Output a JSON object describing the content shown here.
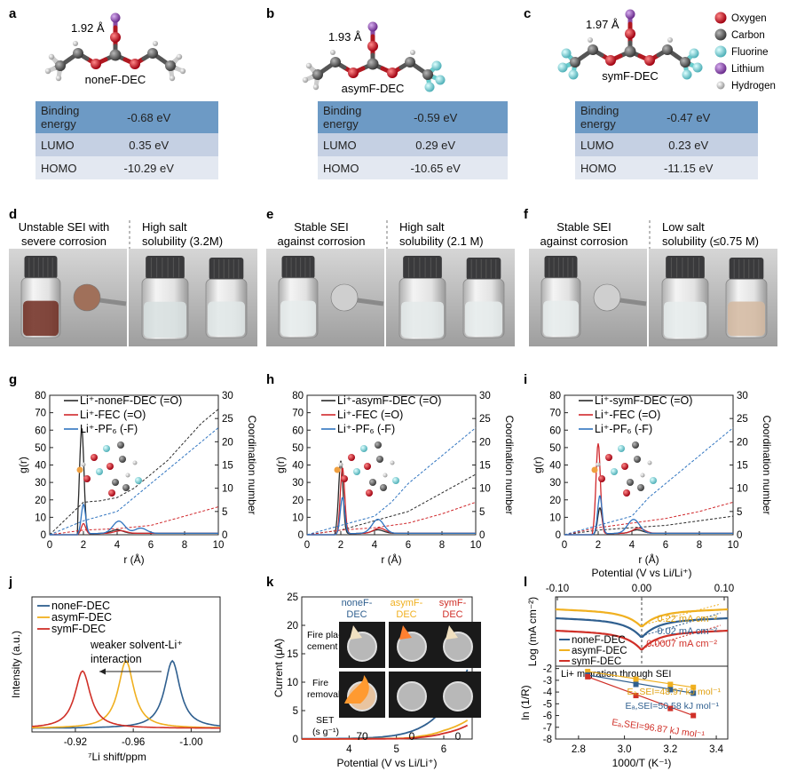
{
  "panel_labels": {
    "a": "a",
    "b": "b",
    "c": "c",
    "d": "d",
    "e": "e",
    "f": "f",
    "g": "g",
    "h": "h",
    "i": "i",
    "j": "j",
    "k": "k",
    "l": "l"
  },
  "molecules": [
    {
      "name": "noneF-DEC",
      "distance": "1.92 Å",
      "rows": [
        {
          "label1": "Binding",
          "label2": "energy",
          "value": "-0.68 eV"
        },
        {
          "label1": "LUMO",
          "label2": "",
          "value": "0.35 eV"
        },
        {
          "label1": "HOMO",
          "label2": "",
          "value": "-10.29 eV"
        }
      ]
    },
    {
      "name": "asymF-DEC",
      "distance": "1.93 Å",
      "rows": [
        {
          "label1": "Binding",
          "label2": "energy",
          "value": "-0.59 eV"
        },
        {
          "label1": "LUMO",
          "label2": "",
          "value": "0.29 eV"
        },
        {
          "label1": "HOMO",
          "label2": "",
          "value": "-10.65 eV"
        }
      ]
    },
    {
      "name": "symF-DEC",
      "distance": "1.97 Å",
      "rows": [
        {
          "label1": "Binding",
          "label2": "energy",
          "value": "-0.47 eV"
        },
        {
          "label1": "LUMO",
          "label2": "",
          "value": "0.23 eV"
        },
        {
          "label1": "HOMO",
          "label2": "",
          "value": "-11.15 eV"
        }
      ]
    }
  ],
  "atom_legend": [
    {
      "name": "Oxygen",
      "color": "#c8141c"
    },
    {
      "name": "Carbon",
      "color": "#5a5a5a"
    },
    {
      "name": "Fluorine",
      "color": "#7fd4d8"
    },
    {
      "name": "Lithium",
      "color": "#9a5cb4"
    },
    {
      "name": "Hydrogen",
      "color": "#d8d8d8"
    }
  ],
  "photos": [
    {
      "left1": "Unstable SEI with",
      "left2": "severe corrosion",
      "right1": "High salt",
      "right2": "solubility (3.2M)"
    },
    {
      "left1": "Stable SEI",
      "left2": "against corrosion",
      "right1": "High salt",
      "right2": "solubility (2.1 M)"
    },
    {
      "left1": "Stable SEI",
      "left2": "against corrosion",
      "right1": "Low salt",
      "right2": "solubility (≤0.75 M)"
    }
  ],
  "rdf": {
    "xlabel": "r (Å)",
    "ylabel": "g(r)",
    "y2label": "Coordination number",
    "xticks": [
      "0",
      "2",
      "4",
      "6",
      "8",
      "10"
    ],
    "yticks": [
      "0",
      "10",
      "20",
      "30",
      "40",
      "50",
      "60",
      "70",
      "80"
    ],
    "y2ticks": [
      "0",
      "5",
      "10",
      "15",
      "20",
      "25",
      "30"
    ],
    "panels": [
      {
        "legend": [
          "Li⁺-noneF-DEC (=O)",
          "Li⁺-FEC (=O)",
          "Li⁺-PF₆ (-F)"
        ],
        "peaks": [
          61,
          6,
          17
        ]
      },
      {
        "legend": [
          "Li⁺-asymF-DEC (=O)",
          "Li⁺-FEC (=O)",
          "Li⁺-PF₆ (-F)"
        ],
        "peaks": [
          42,
          38,
          21
        ]
      },
      {
        "legend": [
          "Li⁺-symF-DEC (=O)",
          "Li⁺-FEC (=O)",
          "Li⁺-PF₆ (-F)"
        ],
        "peaks": [
          15,
          52,
          22
        ]
      }
    ]
  },
  "nmr": {
    "legend": [
      "noneF-DEC",
      "asymF-DEC",
      "symF-DEC"
    ],
    "annotation1": "weaker solvent-Li⁺",
    "annotation2": "interaction",
    "xlabel": "⁷Li shift/ppm",
    "ylabel": "Intensity (a.u.)",
    "xticks": [
      "-0.92",
      "-0.96",
      "-1.00"
    ]
  },
  "lsv": {
    "xlabel": "Potential (V vs Li/Li⁺)",
    "ylabel": "Current (μA)",
    "xticks": [
      "4",
      "5",
      "6"
    ],
    "yticks": [
      "0",
      "5",
      "10",
      "15",
      "20",
      "25"
    ],
    "columns": [
      "noneF-",
      "asymF-",
      "symF-"
    ],
    "col2": "DEC",
    "rows": [
      "Fire pla-",
      "cement",
      "Fire",
      "removal"
    ],
    "set_label": "SET",
    "set_unit": "(s g⁻¹)",
    "set_values": [
      "70",
      "0",
      "0"
    ]
  },
  "tafel": {
    "top_xlabel": "Potential (V vs Li/Li⁺)",
    "top_xticks": [
      "-0.10",
      "0.00",
      "0.10"
    ],
    "ylabel_top": "Log (mA cm⁻²)",
    "ylabel_bottom": "ln (1/R)",
    "legend": [
      "noneF-DEC",
      "asymF-DEC",
      "symF-DEC"
    ],
    "currents": [
      "0.22 mA cm⁻²",
      "0.02 mA cm⁻²",
      "0.0007 mA cm⁻²"
    ],
    "sei_title": "Li+ migration through SEI",
    "ea_labels": [
      "Eₐ,SEI=48.97 kJ mol⁻¹",
      "Eₐ,SEI=50.58 kJ mol⁻¹",
      "Eₐ,SEI=96.87 kJ mol⁻¹"
    ],
    "xlabel": "1000/T (K⁻¹)",
    "xticks": [
      "2.8",
      "3.0",
      "3.2",
      "3.4"
    ],
    "yticks": [
      "-2",
      "-3",
      "-4",
      "-5",
      "-6",
      "-7",
      "-8"
    ]
  },
  "chart_data": [
    {
      "type": "line",
      "title": "g",
      "xlabel": "r (Å)",
      "ylabel": "g(r)",
      "y2label": "Coordination number",
      "xlim": [
        0,
        10
      ],
      "ylim": [
        0,
        80
      ],
      "y2lim": [
        0,
        30
      ],
      "series": [
        {
          "name": "Li⁺-noneF-DEC (=O)",
          "color": "#2a2a2a",
          "peaks": [
            {
              "x": 1.9,
              "y": 61
            },
            {
              "x": 4.0,
              "y": 2
            }
          ],
          "cn": [
            [
              0,
              0
            ],
            [
              2,
              7
            ],
            [
              3,
              7.3
            ],
            [
              4,
              8
            ],
            [
              5,
              10
            ],
            [
              6,
              13
            ],
            [
              7,
              16
            ],
            [
              8,
              20
            ],
            [
              9,
              24
            ],
            [
              10,
              27
            ]
          ]
        },
        {
          "name": "Li⁺-FEC (=O)",
          "color": "#d0282c",
          "peaks": [
            {
              "x": 2.0,
              "y": 6
            },
            {
              "x": 4.2,
              "y": 1.5
            }
          ],
          "cn": [
            [
              0,
              0
            ],
            [
              2,
              1
            ],
            [
              4,
              1.3
            ],
            [
              6,
              2
            ],
            [
              8,
              4
            ],
            [
              10,
              6
            ]
          ]
        },
        {
          "name": "Li⁺-PF₆ (-F)",
          "color": "#2f74c0",
          "peaks": [
            {
              "x": 2.0,
              "y": 17
            },
            {
              "x": 4.1,
              "y": 7
            },
            {
              "x": 5.4,
              "y": 3
            }
          ],
          "cn": [
            [
              0,
              0
            ],
            [
              2,
              3
            ],
            [
              4,
              5
            ],
            [
              5,
              8
            ],
            [
              6,
              11
            ],
            [
              7,
              14
            ],
            [
              8,
              17
            ],
            [
              9,
              20
            ],
            [
              10,
              23
            ]
          ]
        }
      ]
    },
    {
      "type": "line",
      "title": "h",
      "xlabel": "r (Å)",
      "ylabel": "g(r)",
      "y2label": "Coordination number",
      "xlim": [
        0,
        10
      ],
      "ylim": [
        0,
        80
      ],
      "y2lim": [
        0,
        30
      ],
      "series": [
        {
          "name": "Li⁺-asymF-DEC (=O)",
          "color": "#2a2a2a",
          "peaks": [
            {
              "x": 2.0,
              "y": 42
            },
            {
              "x": 4.2,
              "y": 2
            }
          ],
          "cn": [
            [
              0,
              0
            ],
            [
              2,
              1
            ],
            [
              3,
              2
            ],
            [
              4,
              3
            ],
            [
              6,
              5
            ],
            [
              8,
              9
            ],
            [
              10,
              13
            ]
          ]
        },
        {
          "name": "Li⁺-FEC (=O)",
          "color": "#d0282c",
          "peaks": [
            {
              "x": 2.1,
              "y": 38
            },
            {
              "x": 4.3,
              "y": 3
            }
          ],
          "cn": [
            [
              0,
              0
            ],
            [
              2,
              1
            ],
            [
              4,
              1.5
            ],
            [
              6,
              2.5
            ],
            [
              8,
              4.5
            ],
            [
              10,
              7
            ]
          ]
        },
        {
          "name": "Li⁺-PF₆ (-F)",
          "color": "#2f74c0",
          "peaks": [
            {
              "x": 2.1,
              "y": 21
            },
            {
              "x": 4.2,
              "y": 8
            }
          ],
          "cn": [
            [
              0,
              0
            ],
            [
              2,
              2
            ],
            [
              4,
              4
            ],
            [
              5,
              7
            ],
            [
              6,
              11
            ],
            [
              7,
              14
            ],
            [
              8,
              17
            ],
            [
              9,
              20
            ],
            [
              10,
              23
            ]
          ]
        }
      ]
    },
    {
      "type": "line",
      "title": "i",
      "xlabel": "r (Å)",
      "ylabel": "g(r)",
      "y2label": "Coordination number",
      "xlim": [
        0,
        10
      ],
      "ylim": [
        0,
        80
      ],
      "y2lim": [
        0,
        30
      ],
      "series": [
        {
          "name": "Li⁺-symF-DEC (=O)",
          "color": "#2a2a2a",
          "peaks": [
            {
              "x": 2.1,
              "y": 15
            },
            {
              "x": 4.3,
              "y": 2
            }
          ],
          "cn": [
            [
              0,
              0
            ],
            [
              2,
              1
            ],
            [
              4,
              1.5
            ],
            [
              6,
              2
            ],
            [
              8,
              3
            ],
            [
              10,
              4
            ]
          ]
        },
        {
          "name": "Li⁺-FEC (=O)",
          "color": "#d0282c",
          "peaks": [
            {
              "x": 2.0,
              "y": 52
            },
            {
              "x": 4.4,
              "y": 3
            }
          ],
          "cn": [
            [
              0,
              0
            ],
            [
              2,
              1.5
            ],
            [
              4,
              2.5
            ],
            [
              6,
              3.5
            ],
            [
              8,
              5
            ],
            [
              10,
              7
            ]
          ]
        },
        {
          "name": "Li⁺-PF₆ (-F)",
          "color": "#2f74c0",
          "peaks": [
            {
              "x": 2.1,
              "y": 22
            },
            {
              "x": 4.1,
              "y": 8
            }
          ],
          "cn": [
            [
              0,
              0
            ],
            [
              2,
              2
            ],
            [
              4,
              4
            ],
            [
              5,
              8
            ],
            [
              6,
              11
            ],
            [
              7,
              14
            ],
            [
              8,
              17
            ],
            [
              9,
              20
            ],
            [
              10,
              23
            ]
          ]
        }
      ]
    },
    {
      "type": "line",
      "title": "j",
      "xlabel": "⁷Li shift/ppm",
      "ylabel": "Intensity (a.u.)",
      "xlim": [
        -0.89,
        -1.02
      ],
      "series": [
        {
          "name": "noneF-DEC",
          "color": "#2f5f8f",
          "peak_x": -0.987,
          "height": 1.0
        },
        {
          "name": "asymF-DEC",
          "color": "#f0b020",
          "peak_x": -0.955,
          "height": 1.0
        },
        {
          "name": "symF-DEC",
          "color": "#d03028",
          "peak_x": -0.925,
          "height": 0.85
        }
      ]
    },
    {
      "type": "line",
      "title": "k",
      "xlabel": "Potential (V vs Li/Li⁺)",
      "ylabel": "Current (μA)",
      "xlim": [
        3,
        6.6
      ],
      "ylim": [
        0,
        25
      ],
      "series": [
        {
          "name": "noneF-DEC",
          "color": "#2f5f8f",
          "points": [
            [
              3,
              0.05
            ],
            [
              4,
              0.1
            ],
            [
              4.5,
              0.25
            ],
            [
              5,
              0.7
            ],
            [
              5.5,
              2
            ],
            [
              6,
              5.5
            ],
            [
              6.5,
              12.2
            ]
          ]
        },
        {
          "name": "asymF-DEC",
          "color": "#f0b020",
          "points": [
            [
              3,
              0
            ],
            [
              5,
              0.1
            ],
            [
              5.5,
              0.5
            ],
            [
              6,
              1.5
            ],
            [
              6.5,
              3.3
            ]
          ]
        },
        {
          "name": "symF-DEC",
          "color": "#d03028",
          "points": [
            [
              3,
              0
            ],
            [
              5,
              0.05
            ],
            [
              5.5,
              0.3
            ],
            [
              6,
              1.0
            ],
            [
              6.5,
              2.4
            ]
          ]
        }
      ]
    },
    {
      "type": "scatter",
      "title": "l",
      "xlabel": "1000/T (K⁻¹)",
      "ylabel": "ln (1/R)",
      "xlim": [
        2.7,
        3.45
      ],
      "ylim": [
        -8,
        -1.8
      ],
      "series": [
        {
          "name": "asymF-DEC",
          "color": "#f0b020",
          "points": [
            [
              2.84,
              -2.25
            ],
            [
              3.05,
              -2.9
            ],
            [
              3.2,
              -3.35
            ],
            [
              3.3,
              -3.6
            ]
          ]
        },
        {
          "name": "noneF-DEC",
          "color": "#2f5f8f",
          "points": [
            [
              2.84,
              -2.55
            ],
            [
              3.05,
              -3.35
            ],
            [
              3.2,
              -3.8
            ],
            [
              3.3,
              -4.1
            ]
          ]
        },
        {
          "name": "symF-DEC",
          "color": "#d03028",
          "points": [
            [
              2.84,
              -2.7
            ],
            [
              3.05,
              -4.3
            ],
            [
              3.2,
              -5.4
            ],
            [
              3.3,
              -6.0
            ]
          ]
        }
      ]
    }
  ]
}
